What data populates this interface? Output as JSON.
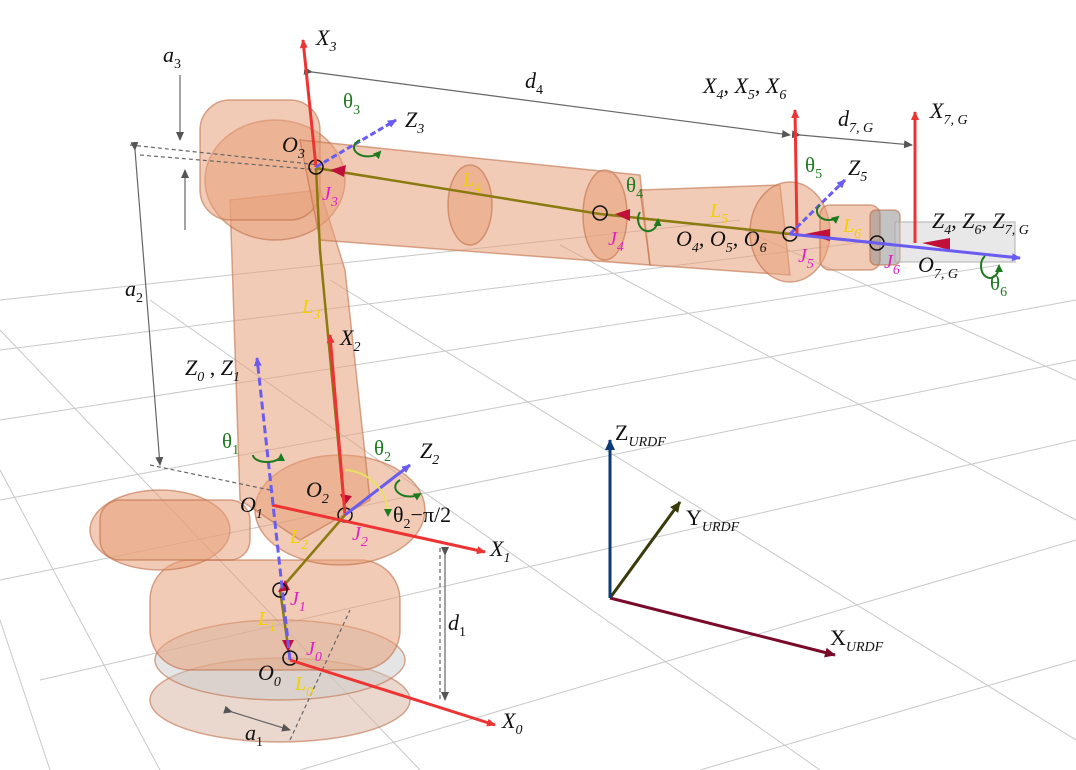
{
  "labels": {
    "X0": "X",
    "X0_sub": "0",
    "X1": "X",
    "X1_sub": "1",
    "X2": "X",
    "X2_sub": "2",
    "X3": "X",
    "X3_sub": "3",
    "X456": "X",
    "X456_a": "4",
    "X456_b": "5",
    "X456_c": "6",
    "X7G": "X",
    "X7G_sub": "7, G",
    "Z01": "Z",
    "Z01_a": "0",
    "Z01_b": "1",
    "Z2": "Z",
    "Z2_sub": "2",
    "Z3": "Z",
    "Z3_sub": "3",
    "Z5": "Z",
    "Z5_sub": "5",
    "Z467": "Z",
    "Z467_a": "4",
    "Z467_b": "6",
    "Z467_c": "7, G",
    "O0": "O",
    "O0_sub": "0",
    "O1": "O",
    "O1_sub": "1",
    "O2": "O",
    "O2_sub": "2",
    "O3": "O",
    "O3_sub": "3",
    "O456": "O",
    "O456_a": "4",
    "O456_b": "5",
    "O456_c": "6",
    "O7G": "O",
    "O7G_sub": "7, G",
    "theta": "θ",
    "t1": "1",
    "t2": "2",
    "t3": "3",
    "t4": "4",
    "t5": "5",
    "t6": "6",
    "theta2_offset": "θ",
    "theta2_offset_sub": "2",
    "theta2_offset_rest": "−π/2",
    "J": "J",
    "j0": "0",
    "j1": "1",
    "j2": "2",
    "j3": "3",
    "j4": "4",
    "j5": "5",
    "j6": "6",
    "L": "L",
    "l0": "0",
    "l1": "1",
    "l2": "2",
    "l3": "3",
    "l4": "4",
    "l5": "5",
    "l6": "6",
    "a": "a",
    "a1": "1",
    "a2": "2",
    "a3": "3",
    "d": "d",
    "d1": "1",
    "d4": "4",
    "d7G": "7, G",
    "urdf": {
      "x": "X",
      "y": "Y",
      "z": "Z",
      "sub": "URDF"
    }
  },
  "colors": {
    "robot": "#e8a07a",
    "robot_dark": "#c0704a",
    "x_axis": "#ee3333",
    "z_axis": "#6a5cf0",
    "theta": "#1e7a1e",
    "joint_label": "#e020c8",
    "link_label": "#f0d000",
    "urdf_x": "#7a0a2a",
    "urdf_y": "#3a3a0a",
    "urdf_z": "#0a3a7a",
    "grid": "#c8c8c8"
  }
}
